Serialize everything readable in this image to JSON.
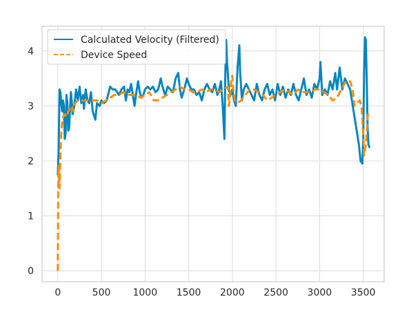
{
  "chart_data": {
    "type": "line",
    "title": "",
    "xlabel": "",
    "ylabel": "",
    "xlim": [
      -180,
      3740
    ],
    "ylim": [
      -0.2,
      4.45
    ],
    "x_ticks": [
      0,
      500,
      1000,
      1500,
      2000,
      2500,
      3000,
      3500
    ],
    "y_ticks": [
      0,
      1,
      2,
      3,
      4
    ],
    "grid": true,
    "legend_position": "upper-left",
    "series": [
      {
        "name": "Calculated  Velocity (Filtered)",
        "color": "#0485bf",
        "style": "solid",
        "points": [
          [
            0,
            1.75
          ],
          [
            10,
            2.2
          ],
          [
            20,
            3.3
          ],
          [
            30,
            3.25
          ],
          [
            40,
            3.05
          ],
          [
            50,
            2.9
          ],
          [
            60,
            3.1
          ],
          [
            70,
            3.0
          ],
          [
            80,
            2.4
          ],
          [
            90,
            2.5
          ],
          [
            100,
            3.2
          ],
          [
            110,
            3.05
          ],
          [
            120,
            2.55
          ],
          [
            130,
            2.6
          ],
          [
            150,
            3.25
          ],
          [
            160,
            3.1
          ],
          [
            170,
            2.85
          ],
          [
            190,
            3.0
          ],
          [
            210,
            3.3
          ],
          [
            230,
            3.1
          ],
          [
            250,
            3.35
          ],
          [
            270,
            3.05
          ],
          [
            290,
            3.2
          ],
          [
            300,
            2.95
          ],
          [
            320,
            3.3
          ],
          [
            340,
            3.1
          ],
          [
            360,
            3.05
          ],
          [
            380,
            3.25
          ],
          [
            400,
            2.9
          ],
          [
            430,
            2.75
          ],
          [
            450,
            3.05
          ],
          [
            480,
            3.0
          ],
          [
            500,
            3.1
          ],
          [
            530,
            3.05
          ],
          [
            560,
            3.1
          ],
          [
            600,
            3.35
          ],
          [
            630,
            3.3
          ],
          [
            660,
            3.3
          ],
          [
            700,
            3.2
          ],
          [
            730,
            3.3
          ],
          [
            760,
            3.35
          ],
          [
            780,
            3.1
          ],
          [
            800,
            3.3
          ],
          [
            820,
            3.25
          ],
          [
            840,
            3.4
          ],
          [
            860,
            3.2
          ],
          [
            880,
            3.0
          ],
          [
            900,
            3.25
          ],
          [
            920,
            3.45
          ],
          [
            940,
            3.25
          ],
          [
            960,
            3.15
          ],
          [
            980,
            3.2
          ],
          [
            1000,
            3.3
          ],
          [
            1030,
            3.35
          ],
          [
            1060,
            3.3
          ],
          [
            1090,
            3.35
          ],
          [
            1120,
            3.25
          ],
          [
            1150,
            3.3
          ],
          [
            1180,
            3.5
          ],
          [
            1200,
            3.35
          ],
          [
            1230,
            3.2
          ],
          [
            1260,
            3.35
          ],
          [
            1290,
            3.3
          ],
          [
            1320,
            3.25
          ],
          [
            1350,
            3.5
          ],
          [
            1380,
            3.6
          ],
          [
            1400,
            3.3
          ],
          [
            1420,
            3.15
          ],
          [
            1450,
            3.3
          ],
          [
            1480,
            3.5
          ],
          [
            1500,
            3.4
          ],
          [
            1530,
            3.3
          ],
          [
            1560,
            3.3
          ],
          [
            1590,
            3.2
          ],
          [
            1620,
            3.25
          ],
          [
            1650,
            3.1
          ],
          [
            1680,
            3.3
          ],
          [
            1710,
            3.4
          ],
          [
            1740,
            3.3
          ],
          [
            1770,
            3.25
          ],
          [
            1800,
            3.4
          ],
          [
            1830,
            3.2
          ],
          [
            1850,
            3.3
          ],
          [
            1870,
            3.45
          ],
          [
            1890,
            3.0
          ],
          [
            1910,
            2.4
          ],
          [
            1920,
            3.6
          ],
          [
            1930,
            4.2
          ],
          [
            1940,
            3.8
          ],
          [
            1960,
            3.3
          ],
          [
            1980,
            3.2
          ],
          [
            2000,
            3.3
          ],
          [
            2020,
            3.1
          ],
          [
            2040,
            3.0
          ],
          [
            2060,
            3.7
          ],
          [
            2080,
            4.1
          ],
          [
            2090,
            3.6
          ],
          [
            2110,
            3.1
          ],
          [
            2130,
            3.3
          ],
          [
            2160,
            3.4
          ],
          [
            2190,
            3.3
          ],
          [
            2220,
            3.2
          ],
          [
            2250,
            3.1
          ],
          [
            2280,
            3.4
          ],
          [
            2310,
            3.2
          ],
          [
            2340,
            3.1
          ],
          [
            2370,
            3.3
          ],
          [
            2400,
            3.4
          ],
          [
            2430,
            3.2
          ],
          [
            2460,
            3.3
          ],
          [
            2490,
            3.1
          ],
          [
            2520,
            3.4
          ],
          [
            2550,
            3.2
          ],
          [
            2580,
            3.35
          ],
          [
            2610,
            3.15
          ],
          [
            2640,
            3.3
          ],
          [
            2670,
            3.2
          ],
          [
            2700,
            3.4
          ],
          [
            2730,
            3.2
          ],
          [
            2760,
            3.1
          ],
          [
            2790,
            3.3
          ],
          [
            2820,
            3.5
          ],
          [
            2850,
            3.2
          ],
          [
            2880,
            3.3
          ],
          [
            2910,
            3.15
          ],
          [
            2940,
            3.4
          ],
          [
            2970,
            3.3
          ],
          [
            3000,
            3.5
          ],
          [
            3010,
            3.8
          ],
          [
            3030,
            3.2
          ],
          [
            3060,
            3.3
          ],
          [
            3090,
            3.2
          ],
          [
            3120,
            3.45
          ],
          [
            3150,
            3.3
          ],
          [
            3180,
            3.6
          ],
          [
            3200,
            3.3
          ],
          [
            3230,
            3.7
          ],
          [
            3260,
            3.3
          ],
          [
            3290,
            3.5
          ],
          [
            3320,
            3.4
          ],
          [
            3350,
            3.3
          ],
          [
            3370,
            3.1
          ],
          [
            3400,
            2.8
          ],
          [
            3430,
            2.5
          ],
          [
            3450,
            2.3
          ],
          [
            3470,
            2.0
          ],
          [
            3490,
            1.95
          ],
          [
            3500,
            2.4
          ],
          [
            3510,
            3.6
          ],
          [
            3520,
            4.25
          ],
          [
            3530,
            4.2
          ],
          [
            3540,
            3.5
          ],
          [
            3550,
            2.6
          ],
          [
            3560,
            2.3
          ],
          [
            3570,
            2.25
          ]
        ]
      },
      {
        "name": "Device Speed",
        "color": "#ff8c00",
        "style": "dashed",
        "points": [
          [
            0,
            0.0
          ],
          [
            5,
            1.5
          ],
          [
            10,
            1.9
          ],
          [
            20,
            1.5
          ],
          [
            30,
            2.1
          ],
          [
            40,
            2.5
          ],
          [
            50,
            2.7
          ],
          [
            60,
            2.8
          ],
          [
            80,
            2.85
          ],
          [
            100,
            2.8
          ],
          [
            120,
            2.9
          ],
          [
            140,
            2.95
          ],
          [
            160,
            3.0
          ],
          [
            180,
            2.9
          ],
          [
            200,
            3.05
          ],
          [
            230,
            3.1
          ],
          [
            260,
            3.1
          ],
          [
            300,
            3.1
          ],
          [
            350,
            3.1
          ],
          [
            400,
            3.1
          ],
          [
            450,
            3.1
          ],
          [
            500,
            3.05
          ],
          [
            550,
            3.1
          ],
          [
            600,
            3.15
          ],
          [
            650,
            3.2
          ],
          [
            700,
            3.2
          ],
          [
            750,
            3.25
          ],
          [
            800,
            3.2
          ],
          [
            850,
            3.2
          ],
          [
            900,
            3.2
          ],
          [
            950,
            3.15
          ],
          [
            1000,
            3.2
          ],
          [
            1050,
            3.25
          ],
          [
            1100,
            3.1
          ],
          [
            1150,
            3.1
          ],
          [
            1200,
            3.15
          ],
          [
            1250,
            3.2
          ],
          [
            1300,
            3.25
          ],
          [
            1350,
            3.3
          ],
          [
            1400,
            3.35
          ],
          [
            1450,
            3.3
          ],
          [
            1500,
            3.3
          ],
          [
            1550,
            3.25
          ],
          [
            1600,
            3.25
          ],
          [
            1650,
            3.3
          ],
          [
            1700,
            3.25
          ],
          [
            1750,
            3.3
          ],
          [
            1800,
            3.3
          ],
          [
            1850,
            3.25
          ],
          [
            1900,
            3.3
          ],
          [
            1950,
            3.35
          ],
          [
            1960,
            3.0
          ],
          [
            1970,
            3.1
          ],
          [
            1990,
            3.5
          ],
          [
            2000,
            3.55
          ],
          [
            2010,
            3.3
          ],
          [
            2030,
            3.1
          ],
          [
            2060,
            3.05
          ],
          [
            2100,
            3.1
          ],
          [
            2150,
            3.2
          ],
          [
            2200,
            3.3
          ],
          [
            2250,
            3.3
          ],
          [
            2300,
            3.25
          ],
          [
            2350,
            3.2
          ],
          [
            2400,
            3.1
          ],
          [
            2450,
            3.15
          ],
          [
            2500,
            3.2
          ],
          [
            2550,
            3.25
          ],
          [
            2600,
            3.3
          ],
          [
            2650,
            3.25
          ],
          [
            2700,
            3.2
          ],
          [
            2750,
            3.3
          ],
          [
            2800,
            3.25
          ],
          [
            2850,
            3.25
          ],
          [
            2900,
            3.25
          ],
          [
            2950,
            3.3
          ],
          [
            3000,
            3.3
          ],
          [
            3050,
            3.25
          ],
          [
            3100,
            3.2
          ],
          [
            3150,
            3.1
          ],
          [
            3200,
            3.15
          ],
          [
            3250,
            3.3
          ],
          [
            3300,
            3.45
          ],
          [
            3350,
            3.45
          ],
          [
            3380,
            3.3
          ],
          [
            3400,
            3.0
          ],
          [
            3430,
            3.05
          ],
          [
            3460,
            3.1
          ],
          [
            3480,
            3.0
          ],
          [
            3500,
            2.5
          ],
          [
            3510,
            2.1
          ],
          [
            3520,
            2.2
          ],
          [
            3530,
            2.3
          ],
          [
            3540,
            2.5
          ],
          [
            3550,
            2.8
          ],
          [
            3560,
            2.9
          ],
          [
            3570,
            2.9
          ]
        ]
      }
    ]
  }
}
